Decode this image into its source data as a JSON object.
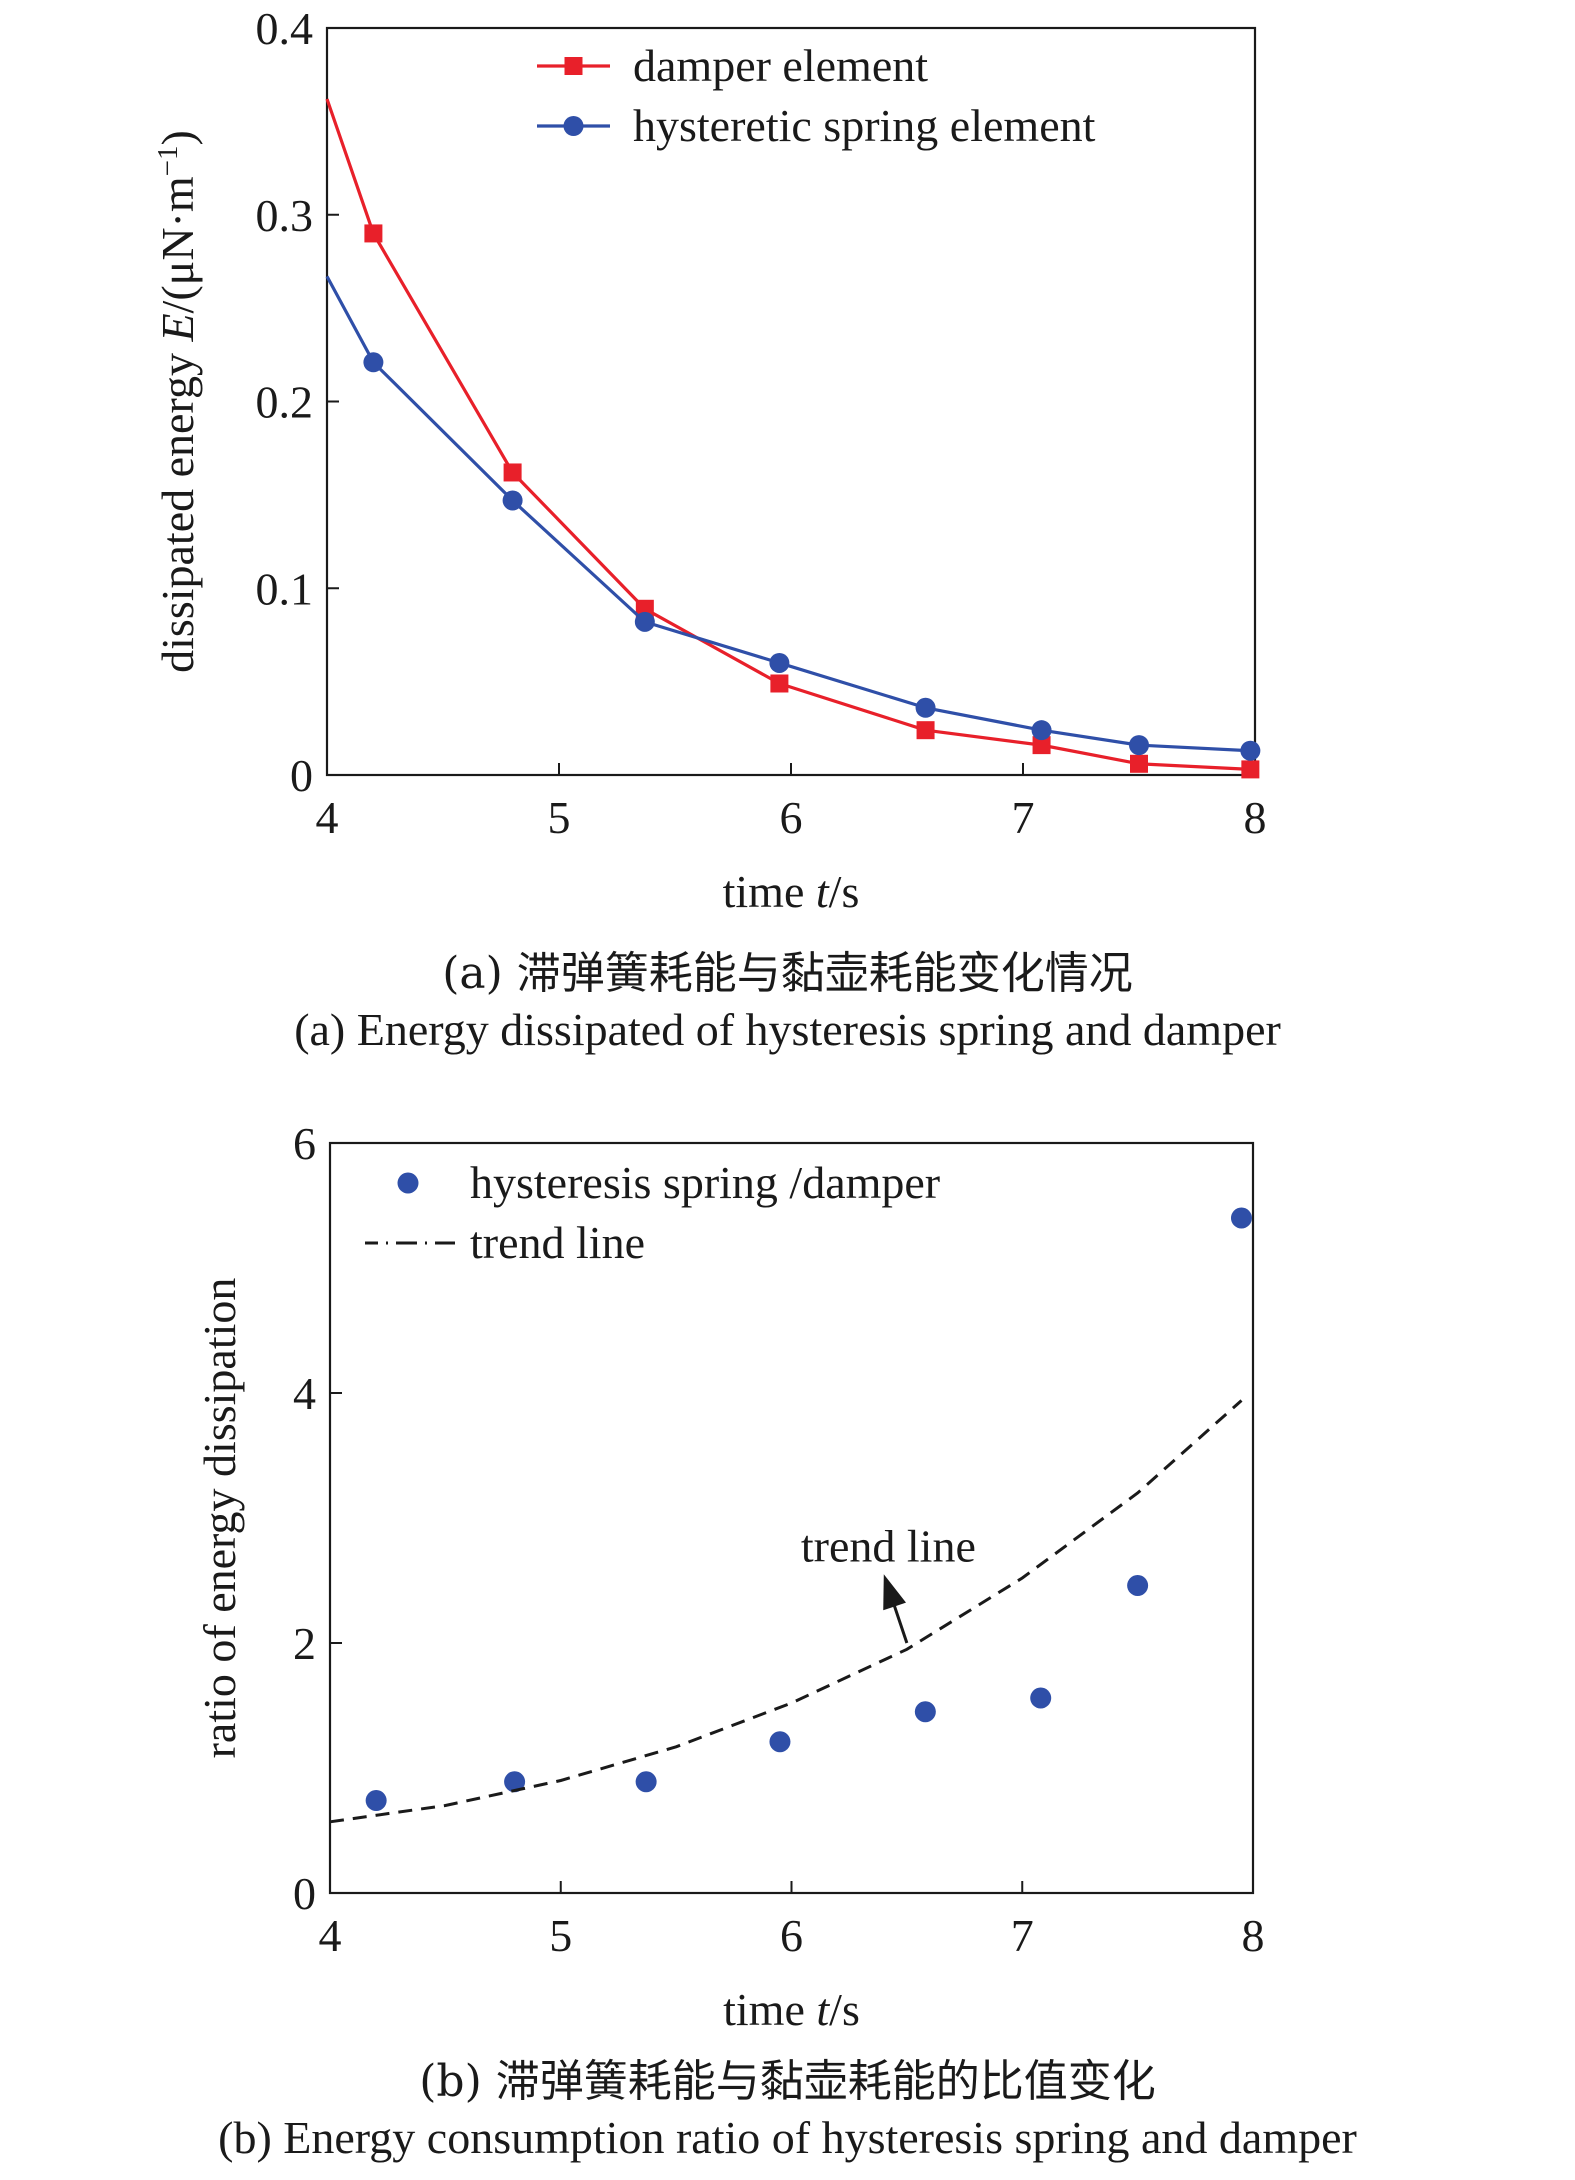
{
  "chart_data": [
    {
      "type": "line",
      "caption_zh": "(a) 滞弹簧耗能与黏壶耗能变化情况",
      "caption_en": "(a) Energy dissipated of hysteresis spring and damper",
      "xlabel": {
        "pre": "time ",
        "var": "t",
        "post": "/s"
      },
      "ylabel": {
        "pre": "dissipated energy ",
        "var": "E",
        "post": "/(μN·m",
        "sup": "−1",
        "close": ")"
      },
      "xlim": [
        4,
        8
      ],
      "ylim": [
        0,
        0.4
      ],
      "xticks": [
        "4",
        "5",
        "6",
        "7",
        "8"
      ],
      "yticks": [
        "0",
        "0.1",
        "0.2",
        "0.3",
        "0.4"
      ],
      "xtick_values": [
        4,
        5,
        6,
        7,
        8
      ],
      "ytick_values": [
        0,
        0.1,
        0.2,
        0.3,
        0.4
      ],
      "grid": false,
      "legend_position": "top-right",
      "series": [
        {
          "name": "damper element",
          "color": "#e8202a",
          "marker": "square",
          "line_start": [
            4.0,
            0.362
          ],
          "x": [
            4.2,
            4.8,
            5.37,
            5.95,
            6.58,
            7.08,
            7.5,
            7.98
          ],
          "y": [
            0.29,
            0.162,
            0.089,
            0.049,
            0.024,
            0.016,
            0.006,
            0.003
          ]
        },
        {
          "name": "hysteretic spring element",
          "color": "#2f4fa8",
          "marker": "circle",
          "line_start": [
            4.0,
            0.267
          ],
          "x": [
            4.2,
            4.8,
            5.37,
            5.95,
            6.58,
            7.08,
            7.5,
            7.98
          ],
          "y": [
            0.221,
            0.147,
            0.082,
            0.06,
            0.036,
            0.024,
            0.016,
            0.013
          ]
        }
      ]
    },
    {
      "type": "scatter",
      "caption_zh": "(b) 滞弹簧耗能与黏壶耗能的比值变化",
      "caption_en": "(b) Energy consumption ratio of hysteresis spring and damper",
      "xlabel": {
        "pre": "time ",
        "var": "t",
        "post": "/s"
      },
      "ylabel": {
        "pre": "ratio of energy dissipation",
        "var": "",
        "post": "",
        "sup": "",
        "close": ""
      },
      "xlim": [
        4,
        8
      ],
      "ylim": [
        0,
        6
      ],
      "xticks": [
        "4",
        "5",
        "6",
        "7",
        "8"
      ],
      "yticks": [
        "0",
        "2",
        "4",
        "6"
      ],
      "xtick_values": [
        4,
        5,
        6,
        7,
        8
      ],
      "ytick_values": [
        0,
        2,
        4,
        6
      ],
      "grid": false,
      "legend_position": "top-left",
      "series": [
        {
          "name": "hysteresis spring /damper",
          "color": "#2f4fa8",
          "marker": "circle",
          "x": [
            4.2,
            4.8,
            5.37,
            5.95,
            6.58,
            7.08,
            7.5,
            7.95
          ],
          "y": [
            0.74,
            0.89,
            0.89,
            1.21,
            1.45,
            1.56,
            2.46,
            5.4
          ]
        },
        {
          "name": "trend line",
          "color": "#1a1a1a",
          "style": "dash-dot",
          "x": [
            4.0,
            4.5,
            5.0,
            5.5,
            6.0,
            6.5,
            7.0,
            7.5,
            7.95
          ],
          "y": [
            0.57,
            0.7,
            0.9,
            1.17,
            1.52,
            1.95,
            2.52,
            3.2,
            3.94
          ]
        }
      ],
      "annotations": [
        {
          "text": "trend line",
          "text_at": [
            6.5,
            2.75
          ],
          "arrow_from": [
            6.5,
            2.0
          ],
          "arrow_to": [
            6.4,
            2.55
          ]
        }
      ]
    }
  ]
}
